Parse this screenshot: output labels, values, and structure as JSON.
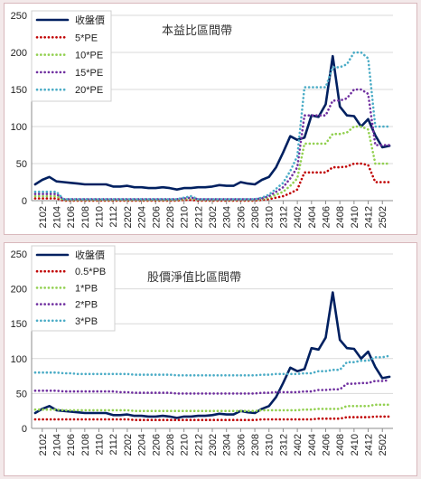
{
  "chart_data": [
    {
      "type": "line",
      "title": "本益比區間帶",
      "ylim": [
        0,
        250
      ],
      "yticks": [
        0,
        50,
        100,
        150,
        200,
        250
      ],
      "grid": true,
      "legend": "top-left",
      "categories": [
        "2101",
        "2102",
        "2103",
        "2104",
        "2105",
        "2106",
        "2107",
        "2108",
        "2109",
        "2110",
        "2111",
        "2112",
        "2201",
        "2202",
        "2203",
        "2204",
        "2205",
        "2206",
        "2207",
        "2208",
        "2209",
        "2210",
        "2211",
        "2212",
        "2301",
        "2302",
        "2303",
        "2304",
        "2305",
        "2306",
        "2307",
        "2308",
        "2309",
        "2310",
        "2311",
        "2312",
        "2401",
        "2402",
        "2403",
        "2404",
        "2405",
        "2406",
        "2407",
        "2408",
        "2409",
        "2410",
        "2411",
        "2412",
        "2501",
        "2502",
        "2503"
      ],
      "xtick_labels": [
        "2102",
        "2104",
        "2106",
        "2108",
        "2110",
        "2112",
        "2202",
        "2204",
        "2206",
        "2208",
        "2210",
        "2212",
        "2302",
        "2304",
        "2306",
        "2308",
        "2310",
        "2312",
        "2402",
        "2404",
        "2406",
        "2408",
        "2410",
        "2412",
        "2502"
      ],
      "series": [
        {
          "name": "收盤價",
          "color": "#002060",
          "style": "solid",
          "width": 2.6,
          "values": [
            22,
            28,
            32,
            26,
            25,
            24,
            23,
            22,
            22,
            22,
            22,
            19,
            19,
            20,
            18,
            18,
            17,
            17,
            18,
            17,
            15,
            17,
            17,
            18,
            18,
            19,
            21,
            20,
            20,
            25,
            23,
            22,
            28,
            32,
            45,
            65,
            87,
            82,
            85,
            115,
            113,
            130,
            195,
            127,
            115,
            114,
            100,
            110,
            88,
            72,
            74
          ]
        },
        {
          "name": "5*PE",
          "color": "#c00000",
          "style": "dotted",
          "width": 2.6,
          "values": [
            3,
            3,
            3,
            3,
            0,
            0,
            0,
            0,
            0,
            0,
            0,
            0,
            0,
            0,
            0,
            0,
            0,
            0,
            0,
            0,
            0,
            1,
            1,
            0,
            0,
            0,
            0,
            0,
            0,
            0,
            0,
            0,
            1,
            2,
            4,
            6,
            10,
            15,
            38,
            38,
            38,
            38,
            45,
            45,
            46,
            50,
            50,
            48,
            25,
            25,
            25
          ]
        },
        {
          "name": "10*PE",
          "color": "#92d050",
          "style": "dotted",
          "width": 2.6,
          "values": [
            6,
            6,
            6,
            6,
            1,
            1,
            1,
            1,
            1,
            1,
            1,
            1,
            1,
            1,
            1,
            1,
            1,
            1,
            1,
            1,
            1,
            2,
            3,
            1,
            1,
            1,
            1,
            1,
            1,
            1,
            1,
            1,
            2,
            4,
            8,
            12,
            20,
            30,
            77,
            77,
            77,
            77,
            90,
            90,
            92,
            100,
            100,
            96,
            50,
            50,
            50
          ]
        },
        {
          "name": "15*PE",
          "color": "#7030a0",
          "style": "dotted",
          "width": 2.6,
          "values": [
            9,
            9,
            9,
            9,
            2,
            2,
            2,
            2,
            2,
            2,
            2,
            2,
            2,
            2,
            2,
            2,
            2,
            2,
            2,
            2,
            2,
            3,
            4,
            2,
            2,
            2,
            2,
            2,
            2,
            2,
            2,
            2,
            3,
            6,
            12,
            18,
            30,
            45,
            115,
            115,
            115,
            115,
            135,
            135,
            138,
            150,
            150,
            144,
            75,
            75,
            75
          ]
        },
        {
          "name": "20*PE",
          "color": "#4bacc6",
          "style": "dotted",
          "width": 2.6,
          "values": [
            12,
            12,
            12,
            12,
            2,
            2,
            2,
            2,
            2,
            2,
            2,
            2,
            2,
            2,
            2,
            2,
            2,
            2,
            2,
            2,
            2,
            4,
            6,
            2,
            2,
            2,
            2,
            2,
            2,
            2,
            2,
            2,
            4,
            8,
            16,
            24,
            40,
            60,
            153,
            153,
            153,
            153,
            180,
            180,
            184,
            200,
            200,
            192,
            100,
            100,
            100
          ]
        }
      ]
    },
    {
      "type": "line",
      "title": "股價淨值比區間帶",
      "ylim": [
        0,
        250
      ],
      "yticks": [
        0,
        50,
        100,
        150,
        200,
        250
      ],
      "grid": true,
      "legend": "top-left",
      "categories": [
        "2101",
        "2102",
        "2103",
        "2104",
        "2105",
        "2106",
        "2107",
        "2108",
        "2109",
        "2110",
        "2111",
        "2112",
        "2201",
        "2202",
        "2203",
        "2204",
        "2205",
        "2206",
        "2207",
        "2208",
        "2209",
        "2210",
        "2211",
        "2212",
        "2301",
        "2302",
        "2303",
        "2304",
        "2305",
        "2306",
        "2307",
        "2308",
        "2309",
        "2310",
        "2311",
        "2312",
        "2401",
        "2402",
        "2403",
        "2404",
        "2405",
        "2406",
        "2407",
        "2408",
        "2409",
        "2410",
        "2411",
        "2412",
        "2501",
        "2502",
        "2503"
      ],
      "xtick_labels": [
        "2102",
        "2104",
        "2106",
        "2108",
        "2110",
        "2112",
        "2202",
        "2204",
        "2206",
        "2208",
        "2210",
        "2212",
        "2302",
        "2304",
        "2306",
        "2308",
        "2310",
        "2312",
        "2402",
        "2404",
        "2406",
        "2408",
        "2410",
        "2412",
        "2502"
      ],
      "series": [
        {
          "name": "收盤價",
          "color": "#002060",
          "style": "solid",
          "width": 2.6,
          "values": [
            22,
            28,
            32,
            26,
            25,
            24,
            23,
            22,
            22,
            22,
            22,
            19,
            19,
            20,
            18,
            18,
            17,
            17,
            18,
            17,
            15,
            17,
            17,
            18,
            18,
            19,
            21,
            20,
            20,
            25,
            23,
            22,
            28,
            32,
            45,
            65,
            87,
            82,
            85,
            115,
            113,
            130,
            195,
            127,
            115,
            114,
            100,
            110,
            88,
            72,
            74
          ]
        },
        {
          "name": "0.5*PB",
          "color": "#c00000",
          "style": "dotted",
          "width": 2.6,
          "values": [
            13,
            13,
            13,
            13,
            13,
            13,
            13,
            13,
            13,
            13,
            13,
            13,
            13,
            13,
            12,
            12,
            12,
            12,
            12,
            12,
            12,
            12,
            12,
            12,
            12,
            12,
            12,
            12,
            12,
            12,
            12,
            12,
            13,
            13,
            13,
            13,
            13,
            13,
            13,
            13,
            14,
            14,
            14,
            14,
            16,
            16,
            16,
            16,
            17,
            17,
            17
          ]
        },
        {
          "name": "1*PB",
          "color": "#92d050",
          "style": "dotted",
          "width": 2.6,
          "values": [
            27,
            27,
            27,
            27,
            26,
            26,
            26,
            26,
            26,
            26,
            26,
            26,
            26,
            26,
            25,
            25,
            25,
            25,
            25,
            25,
            25,
            25,
            25,
            25,
            25,
            25,
            25,
            25,
            25,
            25,
            25,
            25,
            26,
            26,
            26,
            26,
            26,
            26,
            27,
            27,
            28,
            28,
            28,
            28,
            32,
            32,
            32,
            32,
            34,
            34,
            34
          ]
        },
        {
          "name": "2*PB",
          "color": "#7030a0",
          "style": "dotted",
          "width": 2.6,
          "values": [
            54,
            54,
            54,
            54,
            53,
            53,
            53,
            53,
            53,
            53,
            53,
            53,
            52,
            52,
            51,
            51,
            51,
            51,
            51,
            51,
            50,
            50,
            50,
            50,
            50,
            50,
            50,
            50,
            50,
            50,
            50,
            50,
            51,
            51,
            52,
            52,
            52,
            52,
            53,
            53,
            55,
            55,
            56,
            56,
            64,
            64,
            65,
            65,
            68,
            68,
            69
          ]
        },
        {
          "name": "3*PB",
          "color": "#4bacc6",
          "style": "dotted",
          "width": 2.6,
          "values": [
            80,
            80,
            80,
            80,
            79,
            79,
            78,
            78,
            78,
            78,
            78,
            78,
            78,
            78,
            77,
            77,
            77,
            77,
            77,
            77,
            76,
            76,
            76,
            76,
            76,
            76,
            76,
            76,
            76,
            76,
            76,
            76,
            77,
            77,
            78,
            78,
            78,
            78,
            79,
            79,
            82,
            82,
            84,
            84,
            95,
            95,
            97,
            97,
            102,
            102,
            104
          ]
        }
      ]
    }
  ]
}
